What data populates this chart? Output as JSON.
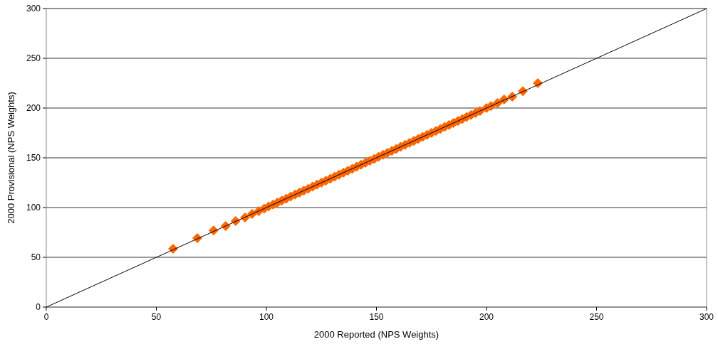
{
  "chart_data": {
    "type": "scatter",
    "xlabel": "2000 Reported (NPS Weights)",
    "ylabel": "2000 Provisional (NPS Weights)",
    "xlim": [
      0,
      300
    ],
    "ylim": [
      0,
      300
    ],
    "xticks": [
      0,
      50,
      100,
      150,
      200,
      250,
      300
    ],
    "yticks": [
      0,
      50,
      100,
      150,
      200,
      250,
      300
    ],
    "grid": "y",
    "series": [
      {
        "color": "#ff6600",
        "marker": "diamond",
        "x": [
          57.6,
          68.6,
          76,
          81.5,
          86,
          90.3,
          93.5,
          96.5,
          99,
          101,
          103,
          105,
          107,
          109,
          111,
          113,
          115,
          117,
          119,
          121,
          123,
          125,
          127,
          129,
          131,
          133,
          135,
          137,
          139,
          141,
          143,
          145,
          147,
          149,
          151,
          153,
          155,
          157,
          159,
          161,
          163,
          165,
          167,
          169,
          171,
          173,
          175,
          177,
          179,
          181,
          183,
          185,
          187,
          189,
          191,
          193,
          195,
          197,
          200,
          202,
          205,
          208,
          211.7,
          216.5,
          223.3
        ],
        "values": [
          58.6,
          69.3,
          77,
          81.5,
          86.4,
          90,
          93.6,
          96.5,
          99,
          101,
          103,
          105,
          107,
          109,
          111,
          113,
          115,
          117,
          119,
          121,
          123,
          125,
          127,
          129,
          131,
          133,
          135,
          137,
          139,
          141,
          143,
          145,
          147,
          149,
          151,
          153,
          155,
          157,
          159,
          161,
          163,
          165,
          167,
          169,
          171,
          173,
          175,
          177,
          179,
          181,
          183,
          185,
          187,
          189,
          191,
          193,
          195,
          197,
          200,
          202,
          205,
          208.6,
          211.4,
          217,
          225
        ]
      },
      {
        "type": "line",
        "color": "#000000",
        "marker": "none",
        "x": [
          0,
          300
        ],
        "values": [
          0,
          300
        ]
      }
    ]
  }
}
